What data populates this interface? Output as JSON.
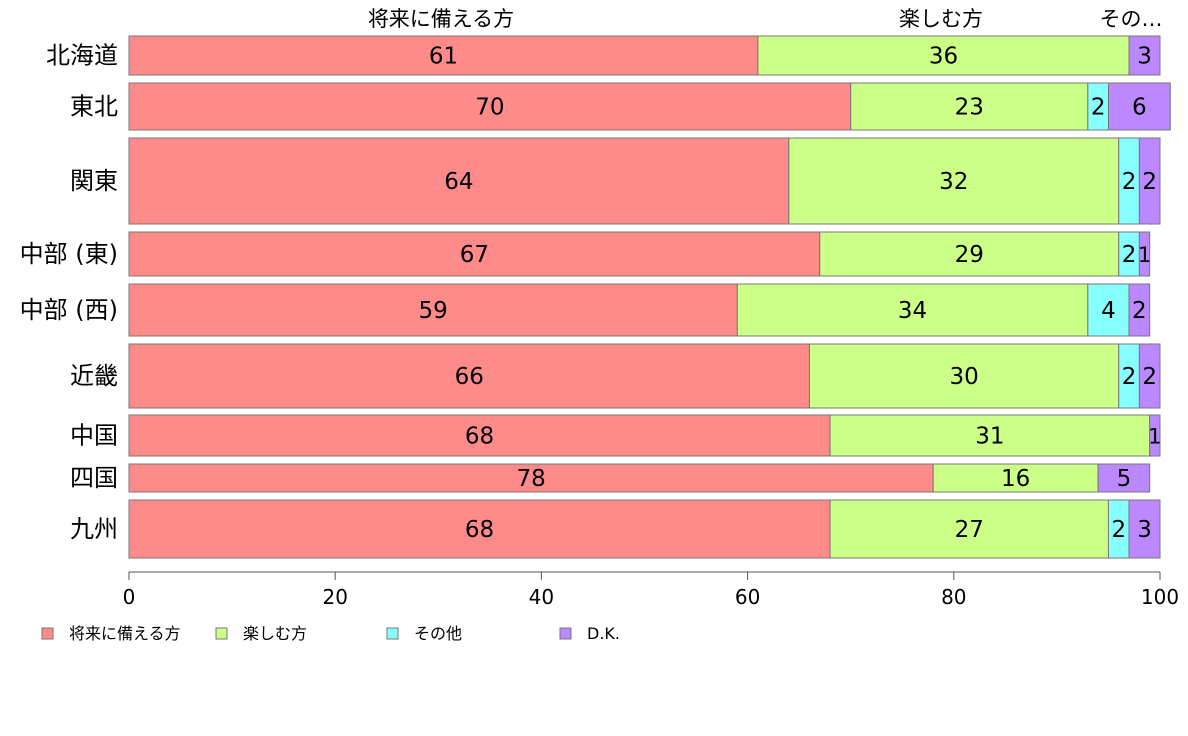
{
  "chart_data": {
    "type": "bar",
    "orientation": "horizontal",
    "stacked": true,
    "categories": [
      "北海道",
      "東北",
      "関東",
      "中部 (東)",
      "中部 (西)",
      "近畿",
      "中国",
      "四国",
      "九州"
    ],
    "series": [
      {
        "name": "将来に備える方",
        "color": "#FF8A8A",
        "values": [
          61,
          70,
          64,
          67,
          59,
          66,
          68,
          78,
          68
        ]
      },
      {
        "name": "楽しむ方",
        "color": "#CCFF88",
        "values": [
          36,
          23,
          32,
          29,
          34,
          30,
          31,
          16,
          27
        ]
      },
      {
        "name": "その他",
        "color": "#88FFFF",
        "values": [
          0,
          2,
          2,
          2,
          4,
          2,
          0,
          0,
          2
        ]
      },
      {
        "name": "D.K.",
        "color": "#BB88FF",
        "values": [
          3,
          6,
          2,
          1,
          2,
          2,
          1,
          5,
          3
        ]
      }
    ],
    "top_labels": [
      "将来に備える方",
      "楽しむ方",
      "その…"
    ],
    "xlim": [
      0,
      100
    ],
    "xticks": [
      "0",
      "20",
      "40",
      "60",
      "80",
      "100"
    ],
    "legend_position": "bottom-left",
    "grid": false
  }
}
